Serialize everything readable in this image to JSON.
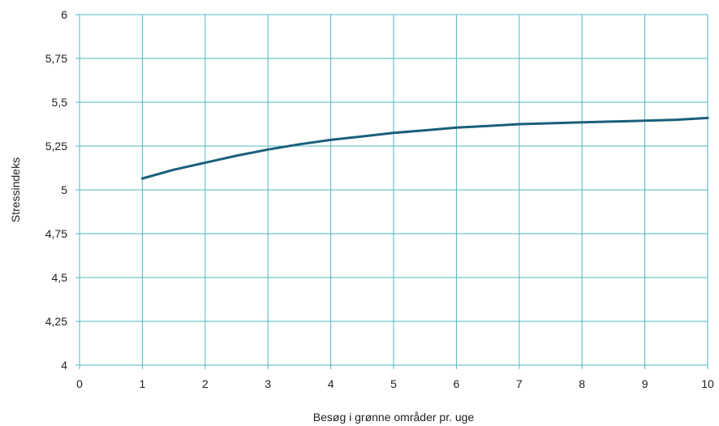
{
  "chart_data": {
    "type": "line",
    "title": "",
    "xlabel": "Besøg i grønne områder pr. uge",
    "ylabel": "Stressindeks",
    "xlim": [
      0,
      10
    ],
    "ylim": [
      4,
      6
    ],
    "grid": true,
    "x_ticks": [
      0,
      1,
      2,
      3,
      4,
      5,
      6,
      7,
      8,
      9,
      10
    ],
    "x_tick_labels": [
      "0",
      "1",
      "2",
      "3",
      "4",
      "5",
      "6",
      "7",
      "8",
      "9",
      "10"
    ],
    "y_ticks": [
      4,
      4.25,
      4.5,
      4.75,
      5,
      5.25,
      5.5,
      5.75,
      6
    ],
    "y_tick_labels": [
      "4",
      "4,25",
      "4,5",
      "4,75",
      "5",
      "5,25",
      "5,5",
      "5,75",
      "6"
    ],
    "series": [
      {
        "color": "#1a5f7a",
        "x": [
          1,
          1.5,
          2,
          2.5,
          3,
          3.5,
          4,
          4.5,
          5,
          5.5,
          6,
          6.5,
          7,
          7.5,
          8,
          8.5,
          9,
          9.5,
          10
        ],
        "y": [
          5.065,
          5.115,
          5.155,
          5.195,
          5.23,
          5.26,
          5.285,
          5.305,
          5.325,
          5.34,
          5.355,
          5.365,
          5.375,
          5.38,
          5.385,
          5.39,
          5.395,
          5.4,
          5.41
        ]
      }
    ]
  },
  "colors": {
    "grid": "#4fb8c4",
    "axis": "#4fb8c4",
    "line": "#1a5f7a"
  }
}
